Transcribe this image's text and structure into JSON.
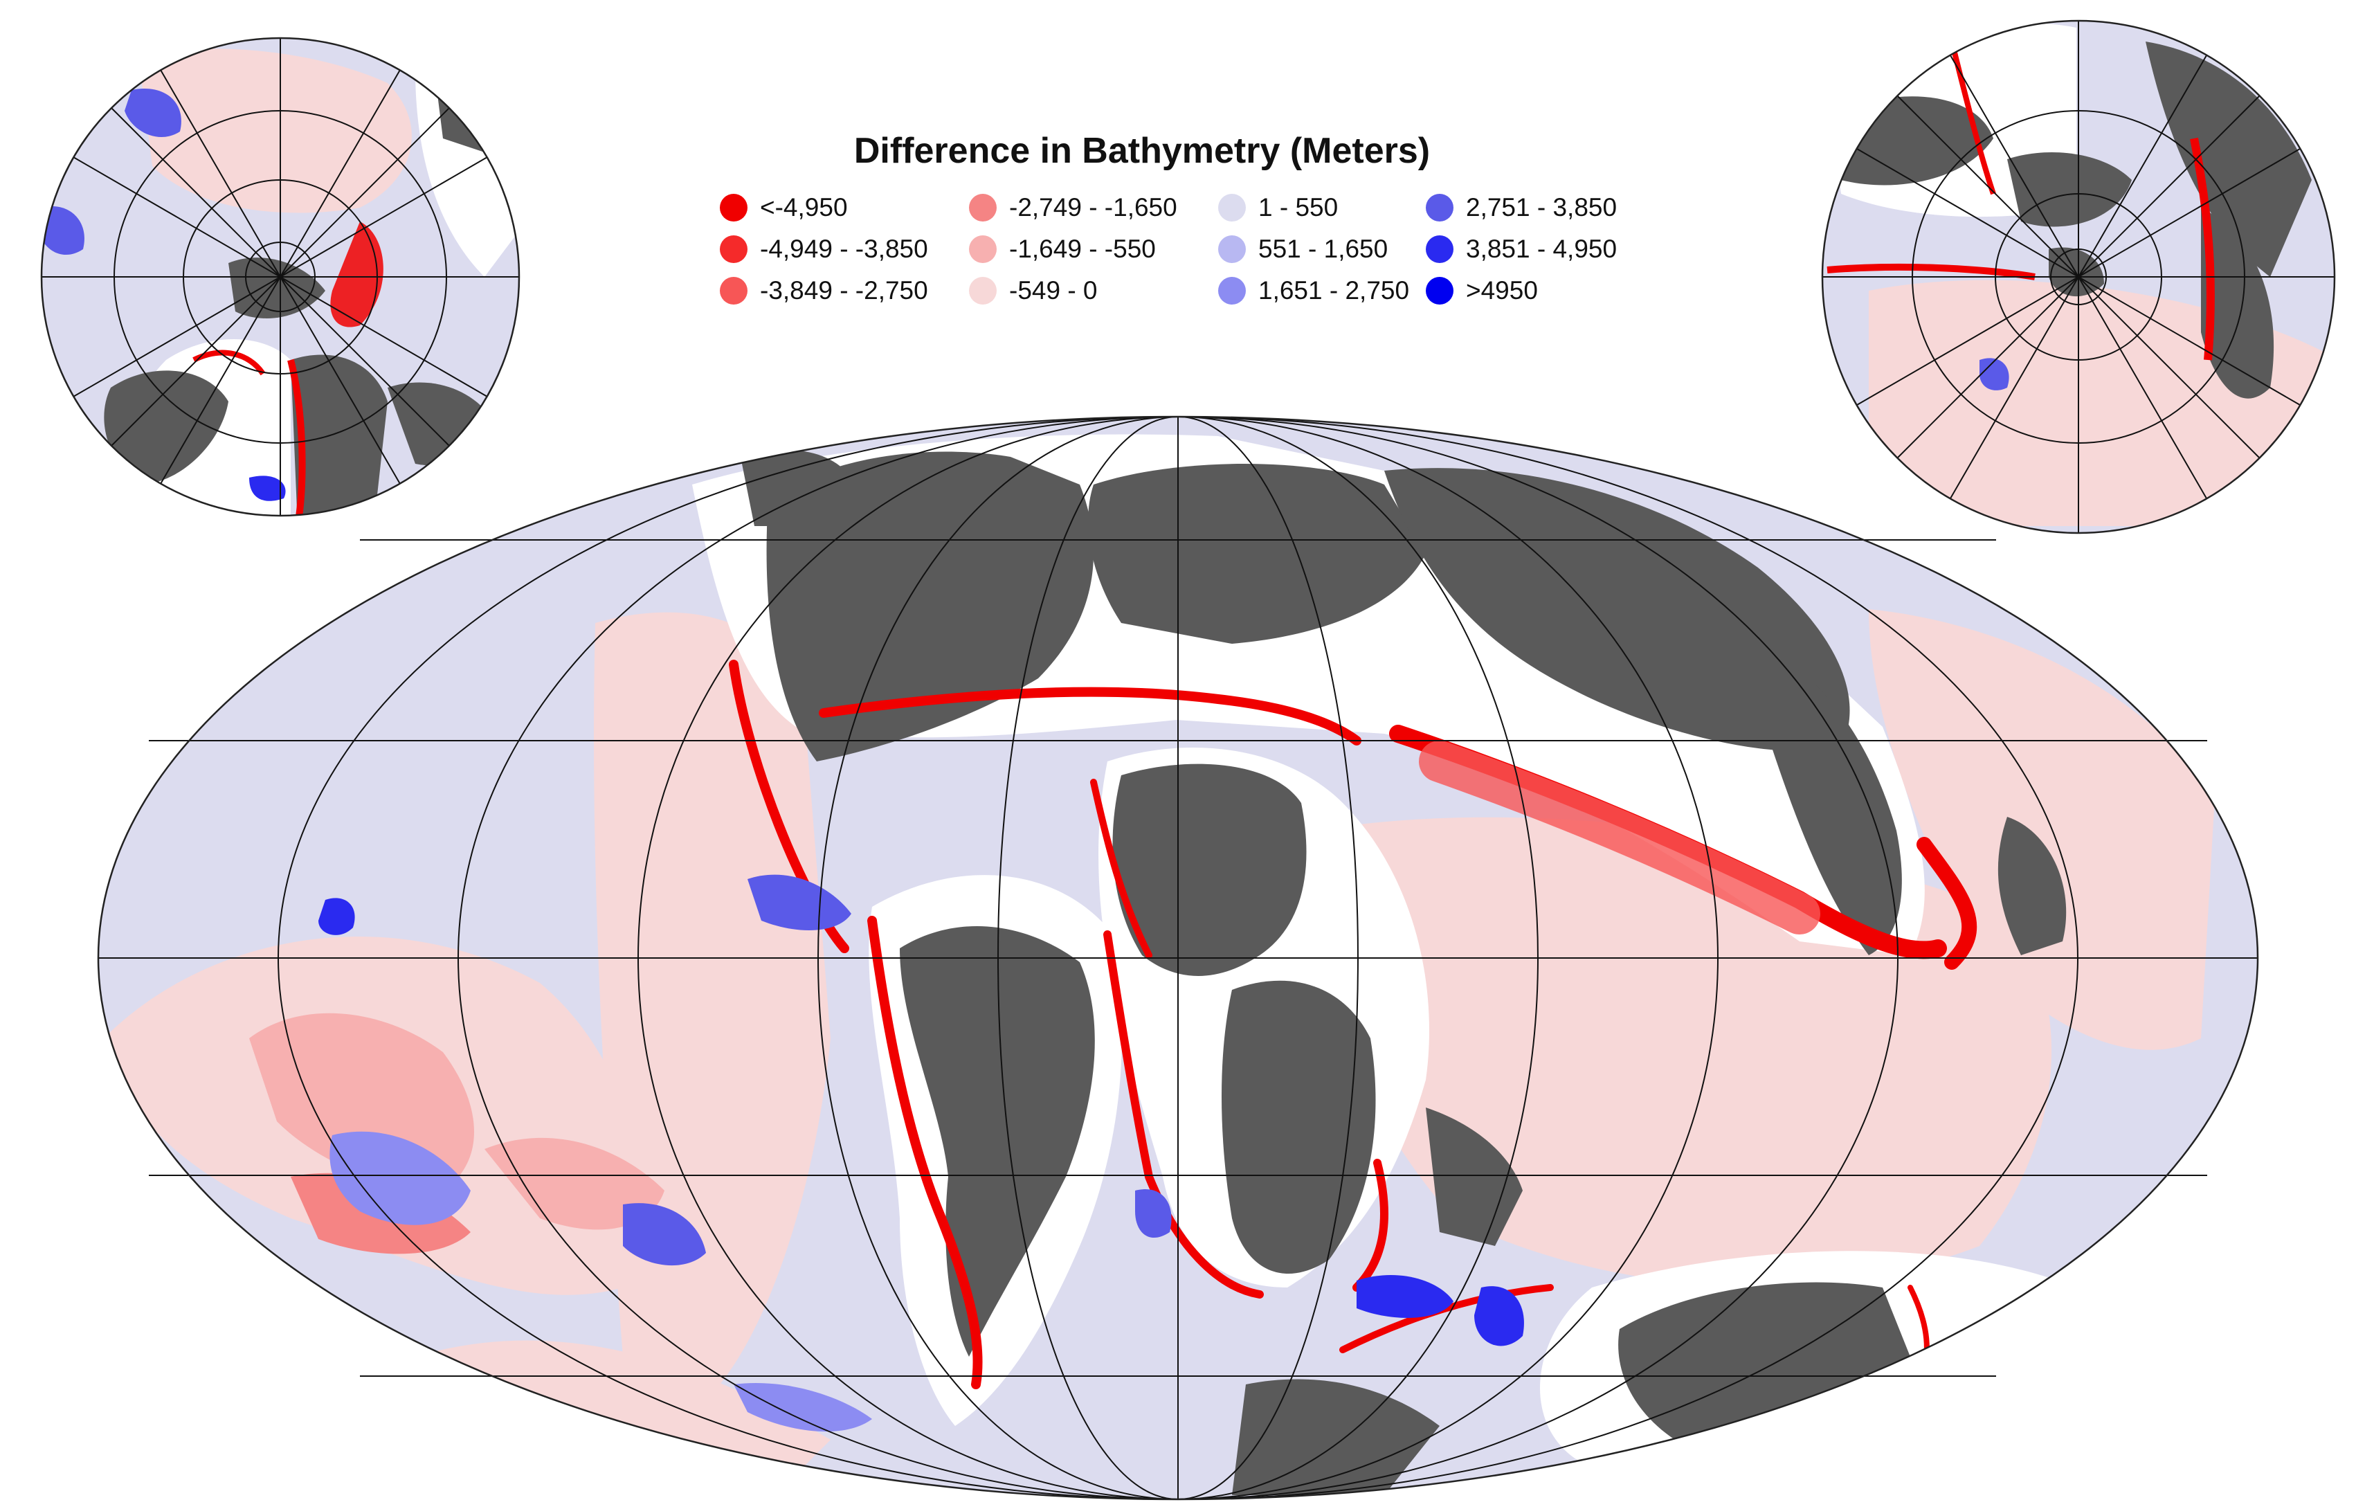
{
  "map": {
    "title": "Difference in Bathymetry (Meters)",
    "projection": "mollweide",
    "insets": [
      "north-polar-stereographic",
      "south-polar-stereographic"
    ],
    "colors": {
      "ocean_neutral": "#dcdcef",
      "land": "#5a5a5a",
      "shelf_white": "#ffffff",
      "graticule": "#111111"
    }
  },
  "legend": {
    "columns": 4,
    "items": [
      {
        "label": "<-4,950",
        "color": "#f00000"
      },
      {
        "label": "-4,949 - -3,850",
        "color": "#f52a2a"
      },
      {
        "label": "-3,849 - -2,750",
        "color": "#f75656"
      },
      {
        "label": "-2,749 - -1,650",
        "color": "#f58484"
      },
      {
        "label": "-1,649 - -550",
        "color": "#f7b0b0"
      },
      {
        "label": "-549 - 0",
        "color": "#f7d8d8"
      },
      {
        "label": "1 - 550",
        "color": "#dcdcef"
      },
      {
        "label": "551 - 1,650",
        "color": "#b8b8f2"
      },
      {
        "label": "1,651 - 2,750",
        "color": "#8c8cf2"
      },
      {
        "label": "2,751 - 3,850",
        "color": "#5a5ae8"
      },
      {
        "label": "3,851 - 4,950",
        "color": "#2a2af0"
      },
      {
        "label": ">4950",
        "color": "#0000f0"
      }
    ]
  }
}
